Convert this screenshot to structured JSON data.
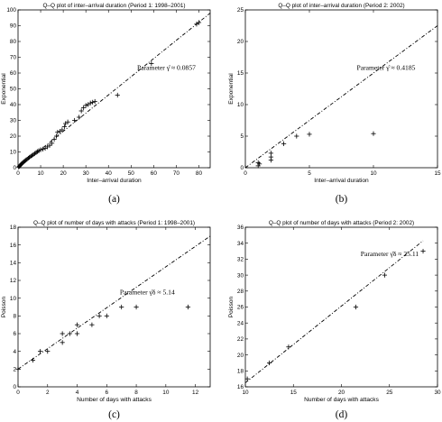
{
  "chart_data": [
    {
      "type": "scatter",
      "title": "Q–Q plot of inter–arrival duration (Period 1: 1998–2001)",
      "xlabel": "Inter–arrival duration",
      "ylabel": "Exponential",
      "xlim": [
        0,
        85
      ],
      "ylim": [
        0,
        100
      ],
      "xticks": [
        "0",
        "10",
        "20",
        "30",
        "40",
        "50",
        "60",
        "70",
        "80"
      ],
      "yticks": [
        "0",
        "10",
        "20",
        "30",
        "40",
        "50",
        "60",
        "70",
        "80",
        "90",
        "100"
      ],
      "annotation": "Parameter γ̂ ≈ 0.0857",
      "caption": "(a)",
      "reference_line": {
        "from": [
          0,
          0
        ],
        "to": [
          85,
          98
        ]
      },
      "points": [
        [
          0.3,
          0.4
        ],
        [
          0.6,
          0.9
        ],
        [
          0.9,
          1.4
        ],
        [
          1.2,
          1.9
        ],
        [
          1.5,
          2.4
        ],
        [
          1.9,
          2.9
        ],
        [
          2.3,
          3.4
        ],
        [
          2.7,
          3.9
        ],
        [
          3.1,
          4.4
        ],
        [
          3.5,
          4.9
        ],
        [
          4,
          5.4
        ],
        [
          4.5,
          6
        ],
        [
          5,
          6.6
        ],
        [
          5.6,
          7.2
        ],
        [
          6.2,
          7.8
        ],
        [
          6.8,
          8.4
        ],
        [
          7.4,
          9
        ],
        [
          8,
          9.6
        ],
        [
          8.6,
          10.2
        ],
        [
          9.2,
          10.8
        ],
        [
          10,
          11.4
        ],
        [
          11,
          11.8
        ],
        [
          12,
          12.3
        ],
        [
          13,
          13.2
        ],
        [
          14,
          14.2
        ],
        [
          15,
          15.5
        ],
        [
          16,
          18
        ],
        [
          17,
          20
        ],
        [
          17.5,
          22.5
        ],
        [
          18.5,
          23
        ],
        [
          19.5,
          24
        ],
        [
          20.5,
          26
        ],
        [
          21,
          28
        ],
        [
          22,
          29
        ],
        [
          25,
          30
        ],
        [
          27,
          32
        ],
        [
          28,
          36
        ],
        [
          29,
          38
        ],
        [
          30,
          39.5
        ],
        [
          31,
          40
        ],
        [
          32,
          41
        ],
        [
          33,
          41.5
        ],
        [
          34,
          42
        ],
        [
          44,
          46
        ],
        [
          59,
          66
        ],
        [
          79,
          91
        ],
        [
          80,
          92
        ]
      ]
    },
    {
      "type": "scatter",
      "title": "Q–Q plot of inter–arrival duration (Period 2: 2002)",
      "xlabel": "Inter–arrival duration",
      "ylabel": "Exponential",
      "xlim": [
        0,
        15
      ],
      "ylim": [
        0,
        25
      ],
      "xticks": [
        "0",
        "5",
        "10",
        "15"
      ],
      "yticks": [
        "0",
        "5",
        "10",
        "15",
        "20",
        "25"
      ],
      "annotation": "Parameter γ̂ ≈ 0.4185",
      "caption": "(b)",
      "reference_line": {
        "from": [
          0,
          0
        ],
        "to": [
          15,
          22.5
        ]
      },
      "points": [
        [
          1,
          0.3
        ],
        [
          1,
          0.8
        ],
        [
          1.1,
          0.6
        ],
        [
          2,
          1.2
        ],
        [
          2,
          1.7
        ],
        [
          2,
          2.3
        ],
        [
          3,
          3.8
        ],
        [
          4,
          5
        ],
        [
          5,
          5.3
        ],
        [
          10,
          5.4
        ]
      ]
    },
    {
      "type": "scatter",
      "title": "Q–Q plot of number of days with attacks (Period 1: 1998–2001)",
      "xlabel": "Number of days with attacks",
      "ylabel": "Poisson",
      "xlim": [
        0,
        13
      ],
      "ylim": [
        0,
        18
      ],
      "xticks": [
        "0",
        "2",
        "4",
        "6",
        "8",
        "10",
        "12"
      ],
      "yticks": [
        "0",
        "2",
        "4",
        "6",
        "8",
        "10",
        "12",
        "14",
        "16",
        "18"
      ],
      "annotation": "Parameter γ̂δ ≈ 5.14",
      "caption": "(c)",
      "reference_line": {
        "from": [
          0,
          2
        ],
        "to": [
          13,
          17
        ]
      },
      "points": [
        [
          0,
          2
        ],
        [
          1,
          3
        ],
        [
          1.5,
          4
        ],
        [
          2,
          4
        ],
        [
          3,
          5
        ],
        [
          3,
          6
        ],
        [
          3.5,
          6
        ],
        [
          4,
          6
        ],
        [
          4,
          7
        ],
        [
          5,
          7
        ],
        [
          5.5,
          8
        ],
        [
          6,
          8
        ],
        [
          7,
          9
        ],
        [
          8,
          9
        ],
        [
          11.5,
          9
        ]
      ]
    },
    {
      "type": "scatter",
      "title": "Q–Q plot of number of days with attacks (Period 2: 2002)",
      "xlabel": "Number of days with attacks",
      "ylabel": "Poisson",
      "xlim": [
        10,
        30
      ],
      "ylim": [
        16,
        36
      ],
      "xticks": [
        "10",
        "15",
        "20",
        "25",
        "30"
      ],
      "yticks": [
        "16",
        "18",
        "20",
        "22",
        "24",
        "26",
        "28",
        "30",
        "32",
        "34",
        "36"
      ],
      "annotation": "Parameter γ̂δ ≈ 25.11",
      "caption": "(d)",
      "reference_line": {
        "from": [
          10,
          16.5
        ],
        "to": [
          28.5,
          34.3
        ]
      },
      "points": [
        [
          10.2,
          17
        ],
        [
          12.5,
          19
        ],
        [
          14.5,
          21
        ],
        [
          21.5,
          26
        ],
        [
          24.5,
          30
        ],
        [
          28.5,
          33
        ]
      ]
    }
  ]
}
